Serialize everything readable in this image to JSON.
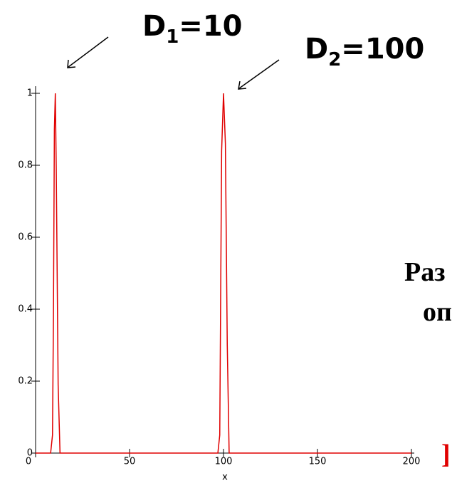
{
  "chart_data": {
    "type": "line",
    "xlabel": "x",
    "x": [
      0,
      8,
      9,
      9.5,
      10,
      10.5,
      11,
      12,
      13,
      97,
      98,
      99,
      100,
      101,
      102,
      103,
      200
    ],
    "series": [
      {
        "color": "#e00000",
        "values": [
          0,
          0,
          0.05,
          0.38,
          0.9,
          1,
          0.79,
          0.19,
          0,
          0,
          0.05,
          0.84,
          1,
          0.86,
          0.3,
          0,
          0
        ]
      }
    ],
    "xlim": [
      0,
      200
    ],
    "xticks": [
      0,
      50,
      100,
      150,
      200
    ],
    "ylim": [
      0,
      1
    ],
    "yticks": [
      0,
      0.2,
      0.4,
      0.6,
      0.8,
      1
    ],
    "annotations": [
      {
        "base": "D",
        "sub": "1",
        "tail": "=10"
      },
      {
        "base": "D",
        "sub": "2",
        "tail": "=100"
      }
    ],
    "side_text": [
      "Раз",
      "оп"
    ],
    "bracket": "]"
  }
}
